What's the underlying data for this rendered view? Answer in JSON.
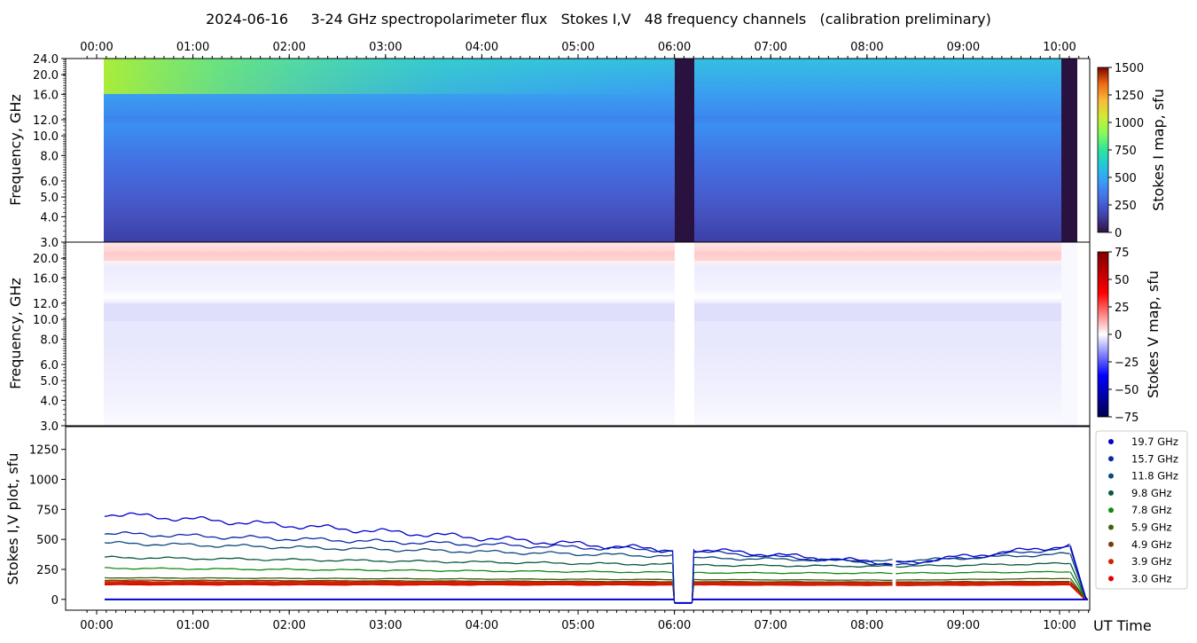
{
  "chart_data": {
    "title": "2024-06-16     3-24 GHz spectropolarimeter flux   Stokes I,V   48 frequency channels   (calibration preliminary)",
    "time_ticks": [
      "00:00",
      "01:00",
      "02:00",
      "03:00",
      "04:00",
      "05:00",
      "06:00",
      "07:00",
      "08:00",
      "09:00",
      "10:00"
    ],
    "x_axis_label": "UT Time",
    "panels": [
      {
        "type": "heatmap",
        "ylabel": "Frequency, GHz",
        "yscale": "log",
        "ylim": [
          3.0,
          24.0
        ],
        "yticks": [
          "3.0",
          "4.0",
          "5.0",
          "6.0",
          "8.0",
          "10.0",
          "12.0",
          "16.0",
          "20.0",
          "24.0"
        ],
        "colorbar": {
          "label": "Stokes I map, sfu",
          "range": [
            0,
            1500
          ],
          "ticks": [
            "0",
            "250",
            "500",
            "750",
            "1000",
            "1250",
            "1500"
          ]
        },
        "data_start": "00:05",
        "gap": [
          "06:00",
          "06:11"
        ],
        "data_end": "10:10"
      },
      {
        "type": "heatmap",
        "ylabel": "Frequency, GHz",
        "yscale": "log",
        "ylim": [
          3.0,
          24.0
        ],
        "yticks": [
          "3.0",
          "4.0",
          "5.0",
          "6.0",
          "8.0",
          "10.0",
          "12.0",
          "16.0",
          "20.0"
        ],
        "colorbar": {
          "label": "Stokes V map, sfu",
          "range": [
            -75,
            75
          ],
          "ticks": [
            "75",
            "50",
            "25",
            "0",
            "−25",
            "−50",
            "−75"
          ]
        }
      },
      {
        "type": "line",
        "ylabel": "Stokes I,V plot, sfu",
        "ylim": [
          -90,
          1440
        ],
        "yticks": [
          "0",
          "250",
          "500",
          "750",
          "1000",
          "1250"
        ],
        "legend_position": "outside-right",
        "series": [
          {
            "name": "19.7 GHz",
            "color": "#0000cc",
            "start": 715,
            "pre_gap": 410,
            "post_gap": 420,
            "dip": 300,
            "end": 450
          },
          {
            "name": "15.7 GHz",
            "color": "#0a2aa5",
            "start": 550,
            "pre_gap": 410,
            "post_gap": 400,
            "dip": 290,
            "end": 430
          },
          {
            "name": "11.8 GHz",
            "color": "#0d4a7a",
            "start": 470,
            "pre_gap": 360,
            "post_gap": 345,
            "dip": 320,
            "end": 380
          },
          {
            "name": "9.8 GHz",
            "color": "#0a5a3c",
            "start": 350,
            "pre_gap": 290,
            "post_gap": 285,
            "dip": 275,
            "end": 300
          },
          {
            "name": "7.8 GHz",
            "color": "#108a10",
            "start": 260,
            "pre_gap": 225,
            "post_gap": 222,
            "dip": 218,
            "end": 230
          },
          {
            "name": "5.9 GHz",
            "color": "#3d6010",
            "start": 180,
            "pre_gap": 165,
            "post_gap": 165,
            "dip": 160,
            "end": 175
          },
          {
            "name": "4.9 GHz",
            "color": "#7a3a08",
            "start": 160,
            "pre_gap": 148,
            "post_gap": 148,
            "dip": 145,
            "end": 150
          },
          {
            "name": "3.9 GHz",
            "color": "#d22000",
            "start": 140,
            "pre_gap": 135,
            "post_gap": 135,
            "dip": 130,
            "end": 135
          },
          {
            "name": "3.0 GHz",
            "color": "#e00000",
            "start": 130,
            "pre_gap": 128,
            "post_gap": 128,
            "dip": 125,
            "end": 128
          }
        ]
      }
    ]
  }
}
